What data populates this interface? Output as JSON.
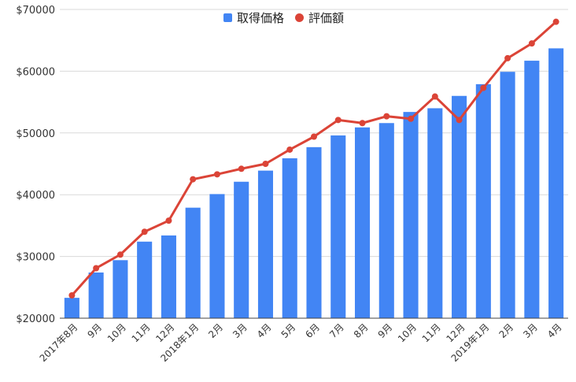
{
  "colors": {
    "bar": "#4285f4",
    "line": "#db4437",
    "grid": "#d9d9d9",
    "axis": "#333333"
  },
  "chart_data": {
    "type": "bar",
    "categories": [
      "2017年8月",
      "9月",
      "10月",
      "11月",
      "12月",
      "2018年1月",
      "2月",
      "3月",
      "4月",
      "5月",
      "6月",
      "7月",
      "8月",
      "9月",
      "10月",
      "11月",
      "12月",
      "2019年1月",
      "2月",
      "3月",
      "4月"
    ],
    "series": [
      {
        "name": "取得価格",
        "type": "bar",
        "values": [
          23300,
          27400,
          29400,
          32400,
          33400,
          37900,
          40100,
          42100,
          43900,
          45900,
          47700,
          49600,
          50900,
          51600,
          53400,
          54000,
          56000,
          57900,
          59900,
          61700,
          63700
        ]
      },
      {
        "name": "評価額",
        "type": "line",
        "values": [
          23700,
          28100,
          30300,
          34000,
          35800,
          42500,
          43300,
          44200,
          45000,
          47300,
          49400,
          52100,
          51600,
          52700,
          52300,
          55900,
          52100,
          57300,
          62100,
          64500,
          68000
        ]
      }
    ],
    "ylim": [
      20000,
      70000
    ],
    "yticks": [
      20000,
      30000,
      40000,
      50000,
      60000,
      70000
    ],
    "ytick_labels": [
      "$20000",
      "$30000",
      "$40000",
      "$50000",
      "$60000",
      "$70000"
    ],
    "legend_position": "top-center",
    "grid": true
  }
}
